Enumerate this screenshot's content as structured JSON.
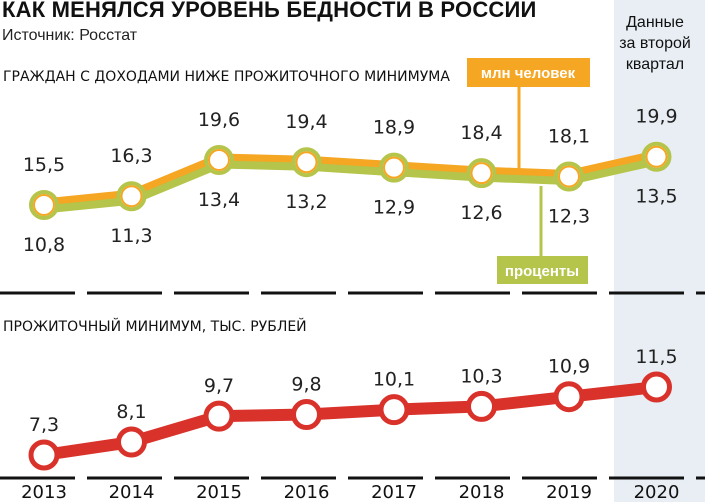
{
  "title": "КАК МЕНЯЛСЯ УРОВЕНЬ БЕДНОСТИ В РОССИИ",
  "source": "Источник: Росстат",
  "note": [
    "Данные",
    "за второй",
    "квартал"
  ],
  "colors": {
    "millions": "#f5a623",
    "percent": "#b5c44a",
    "minimum": "#d9322b",
    "highlight": "#e8eef3",
    "marker_fill": "#ffffff"
  },
  "chart_data": [
    {
      "type": "line",
      "title": "ГРАЖДАН С ДОХОДАМИ НИЖЕ ПРОЖИТОЧНОГО МИНИМУМА",
      "categories": [
        "2013",
        "2014",
        "2015",
        "2016",
        "2017",
        "2018",
        "2019",
        "2020"
      ],
      "series": [
        {
          "name": "млн человек",
          "values": [
            "15,5",
            "16,3",
            "19,6",
            "19,4",
            "18,9",
            "18,4",
            "18,1",
            "19,9"
          ]
        },
        {
          "name": "проценты",
          "values": [
            "10,8",
            "11,3",
            "13,4",
            "13,2",
            "12,9",
            "12,6",
            "12,3",
            "13,5"
          ]
        }
      ]
    },
    {
      "type": "line",
      "title": "ПРОЖИТОЧНЫЙ МИНИМУМ, ТЫС. РУБЛЕЙ",
      "categories": [
        "2013",
        "2014",
        "2015",
        "2016",
        "2017",
        "2018",
        "2019",
        "2020"
      ],
      "series": [
        {
          "values": [
            "7,3",
            "8,1",
            "9,7",
            "9,8",
            "10,1",
            "10,3",
            "10,9",
            "11,5"
          ]
        }
      ]
    }
  ]
}
